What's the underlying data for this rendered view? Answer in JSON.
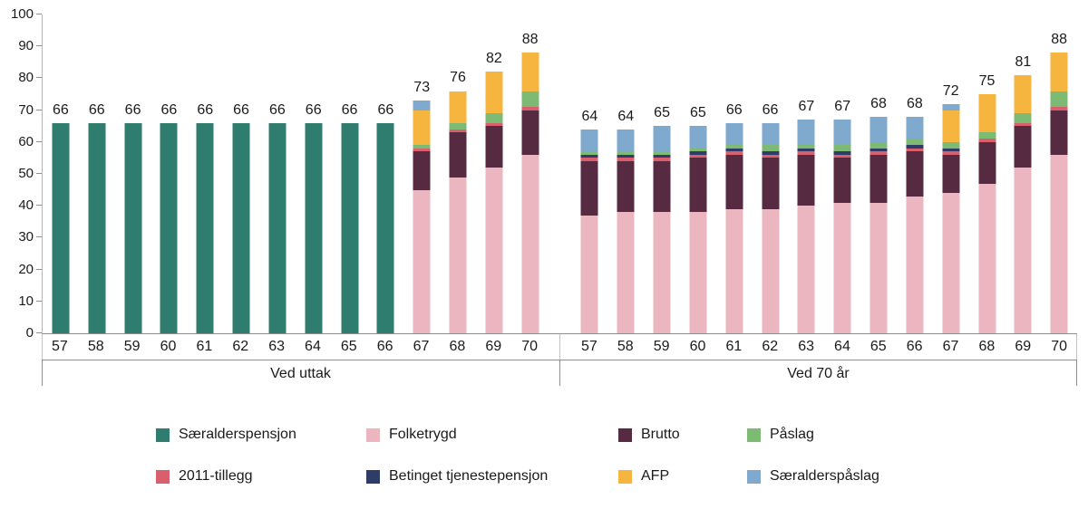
{
  "chart_data": {
    "type": "bar",
    "variant": "stacked",
    "title": "",
    "xlabel": "",
    "ylabel": "",
    "ylim": [
      0,
      100
    ],
    "yticks": [
      0,
      10,
      20,
      30,
      40,
      50,
      60,
      70,
      80,
      90,
      100
    ],
    "grid": false,
    "legend_position": "bottom",
    "series": [
      {
        "name": "Særalderspensjon",
        "slug": "saeralderspensjon",
        "color": "#2E7D6F"
      },
      {
        "name": "Folketrygd",
        "slug": "folketrygd",
        "color": "#EBB6BF"
      },
      {
        "name": "Brutto",
        "slug": "brutto",
        "color": "#562B42"
      },
      {
        "name": "2011-tillegg",
        "slug": "tillegg-2011",
        "color": "#D95F6C"
      },
      {
        "name": "Betinget tjenestepensjon",
        "slug": "betinget-tjenestepensjon",
        "color": "#2F3C68"
      },
      {
        "name": "Påslag",
        "slug": "paaslag",
        "color": "#7DBA74"
      },
      {
        "name": "AFP",
        "slug": "afp",
        "color": "#F5B53F"
      },
      {
        "name": "Særalderspåslag",
        "slug": "saeralderspaaslag",
        "color": "#7FA9CD"
      }
    ],
    "legend": {
      "row1": [
        "Særalderspensjon",
        "Folketrygd",
        "Brutto",
        "Påslag"
      ],
      "row2": [
        "2011-tillegg",
        "Betinget tjenestepensjon",
        "AFP",
        "Særalderspåslag"
      ]
    },
    "panels": [
      {
        "title": "Ved uttak",
        "categories": [
          "57",
          "58",
          "59",
          "60",
          "61",
          "62",
          "63",
          "64",
          "65",
          "66",
          "67",
          "68",
          "69",
          "70"
        ],
        "totals": [
          66,
          66,
          66,
          66,
          66,
          66,
          66,
          66,
          66,
          66,
          73,
          76,
          82,
          88
        ],
        "bars": [
          {
            "Særalderspensjon": 66
          },
          {
            "Særalderspensjon": 66
          },
          {
            "Særalderspensjon": 66
          },
          {
            "Særalderspensjon": 66
          },
          {
            "Særalderspensjon": 66
          },
          {
            "Særalderspensjon": 66
          },
          {
            "Særalderspensjon": 66
          },
          {
            "Særalderspensjon": 66
          },
          {
            "Særalderspensjon": 66
          },
          {
            "Særalderspensjon": 66
          },
          {
            "Folketrygd": 45,
            "Brutto": 12,
            "2011-tillegg": 1,
            "Påslag": 1,
            "AFP": 11,
            "Særalderspåslag": 3
          },
          {
            "Folketrygd": 49,
            "Brutto": 14,
            "2011-tillegg": 1,
            "Påslag": 2,
            "AFP": 10
          },
          {
            "Folketrygd": 52,
            "Brutto": 13,
            "2011-tillegg": 1,
            "Påslag": 3,
            "AFP": 13
          },
          {
            "Folketrygd": 56,
            "Brutto": 14,
            "2011-tillegg": 1,
            "Påslag": 5,
            "AFP": 12
          }
        ]
      },
      {
        "title": "Ved 70 år",
        "categories": [
          "57",
          "58",
          "59",
          "60",
          "61",
          "62",
          "63",
          "64",
          "65",
          "66",
          "67",
          "68",
          "69",
          "70"
        ],
        "totals": [
          64,
          64,
          65,
          65,
          66,
          66,
          67,
          67,
          68,
          68,
          72,
          75,
          81,
          88
        ],
        "bars": [
          {
            "Folketrygd": 37,
            "Brutto": 17,
            "2011-tillegg": 1,
            "Betinget tjenestepensjon": 1,
            "Påslag": 1,
            "Særalderspåslag": 7
          },
          {
            "Folketrygd": 38,
            "Brutto": 16,
            "2011-tillegg": 1,
            "Betinget tjenestepensjon": 1,
            "Påslag": 1,
            "Særalderspåslag": 7
          },
          {
            "Folketrygd": 38,
            "Brutto": 16,
            "2011-tillegg": 1,
            "Betinget tjenestepensjon": 1,
            "Påslag": 1,
            "Særalderspåslag": 8
          },
          {
            "Folketrygd": 38,
            "Brutto": 17,
            "2011-tillegg": 1,
            "Betinget tjenestepensjon": 1,
            "Påslag": 1,
            "Særalderspåslag": 7
          },
          {
            "Folketrygd": 39,
            "Brutto": 17,
            "2011-tillegg": 1,
            "Betinget tjenestepensjon": 1,
            "Påslag": 1,
            "Særalderspåslag": 7
          },
          {
            "Folketrygd": 39,
            "Brutto": 16,
            "2011-tillegg": 1,
            "Betinget tjenestepensjon": 1,
            "Påslag": 2,
            "Særalderspåslag": 7
          },
          {
            "Folketrygd": 40,
            "Brutto": 16,
            "2011-tillegg": 1,
            "Betinget tjenestepensjon": 1,
            "Påslag": 1,
            "Særalderspåslag": 8
          },
          {
            "Folketrygd": 41,
            "Brutto": 14,
            "2011-tillegg": 1,
            "Betinget tjenestepensjon": 1,
            "Påslag": 2,
            "Særalderspåslag": 8
          },
          {
            "Folketrygd": 41,
            "Brutto": 15,
            "2011-tillegg": 1,
            "Betinget tjenestepensjon": 1,
            "Påslag": 2,
            "Særalderspåslag": 8
          },
          {
            "Folketrygd": 43,
            "Brutto": 14,
            "2011-tillegg": 1,
            "Betinget tjenestepensjon": 1,
            "Påslag": 2,
            "Særalderspåslag": 7
          },
          {
            "Folketrygd": 44,
            "Brutto": 12,
            "2011-tillegg": 1,
            "Betinget tjenestepensjon": 1,
            "Påslag": 2,
            "AFP": 10,
            "Særalderspåslag": 2
          },
          {
            "Folketrygd": 47,
            "Brutto": 13,
            "2011-tillegg": 1,
            "Påslag": 2,
            "AFP": 12
          },
          {
            "Folketrygd": 52,
            "Brutto": 13,
            "2011-tillegg": 1,
            "Påslag": 3,
            "AFP": 12
          },
          {
            "Folketrygd": 56,
            "Brutto": 14,
            "2011-tillegg": 1,
            "Påslag": 5,
            "AFP": 12
          }
        ]
      }
    ]
  }
}
